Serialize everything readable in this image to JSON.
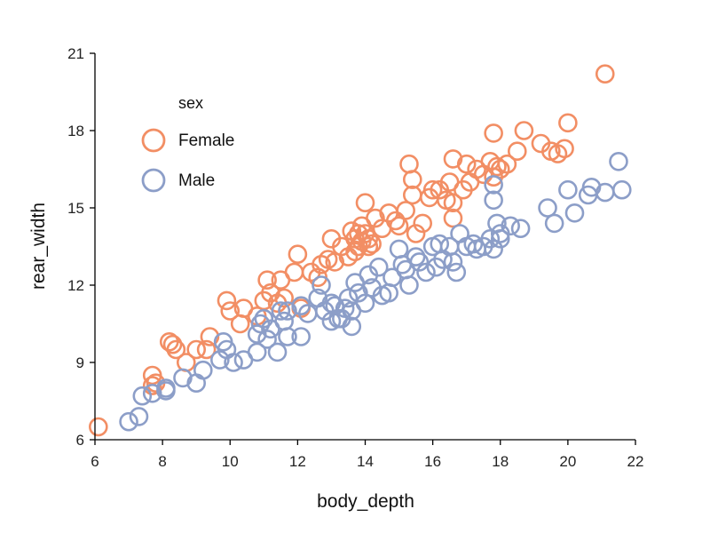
{
  "chart_data": {
    "type": "scatter",
    "title": "",
    "xlabel": "body_depth",
    "ylabel": "rear_width",
    "xlim": [
      6,
      22
    ],
    "ylim": [
      6,
      21
    ],
    "xticks": [
      6,
      8,
      10,
      12,
      14,
      16,
      18,
      20,
      22
    ],
    "yticks": [
      6,
      9,
      12,
      15,
      18,
      21
    ],
    "grid": false,
    "legend": {
      "title": "sex",
      "placement": "top-left"
    },
    "series": [
      {
        "name": "Female",
        "color": "#f28e64",
        "points": [
          [
            6.1,
            6.5
          ],
          [
            7.7,
            8.1
          ],
          [
            7.7,
            8.5
          ],
          [
            7.8,
            8.2
          ],
          [
            8.2,
            9.8
          ],
          [
            8.3,
            9.7
          ],
          [
            8.4,
            9.5
          ],
          [
            8.7,
            9.0
          ],
          [
            9.0,
            9.5
          ],
          [
            9.3,
            9.5
          ],
          [
            9.4,
            10.0
          ],
          [
            9.9,
            11.4
          ],
          [
            10.0,
            11.0
          ],
          [
            10.3,
            10.5
          ],
          [
            10.4,
            11.1
          ],
          [
            10.8,
            10.8
          ],
          [
            11.0,
            11.4
          ],
          [
            11.1,
            12.2
          ],
          [
            11.2,
            11.7
          ],
          [
            11.4,
            11.3
          ],
          [
            11.5,
            12.2
          ],
          [
            11.6,
            11.5
          ],
          [
            11.9,
            12.5
          ],
          [
            12.0,
            13.2
          ],
          [
            12.1,
            11.1
          ],
          [
            12.4,
            12.5
          ],
          [
            12.6,
            12.3
          ],
          [
            12.7,
            12.8
          ],
          [
            12.9,
            13.0
          ],
          [
            13.0,
            13.8
          ],
          [
            13.1,
            12.9
          ],
          [
            13.3,
            13.5
          ],
          [
            13.5,
            13.1
          ],
          [
            13.6,
            14.1
          ],
          [
            13.7,
            13.8
          ],
          [
            13.7,
            13.3
          ],
          [
            13.8,
            14.0
          ],
          [
            13.8,
            13.5
          ],
          [
            13.9,
            14.3
          ],
          [
            13.9,
            13.7
          ],
          [
            14.0,
            15.2
          ],
          [
            14.0,
            14.0
          ],
          [
            14.1,
            13.5
          ],
          [
            14.1,
            13.8
          ],
          [
            14.2,
            13.6
          ],
          [
            14.3,
            14.6
          ],
          [
            14.5,
            14.2
          ],
          [
            14.7,
            14.8
          ],
          [
            14.9,
            14.5
          ],
          [
            15.0,
            14.3
          ],
          [
            15.2,
            14.9
          ],
          [
            15.3,
            16.7
          ],
          [
            15.4,
            16.1
          ],
          [
            15.4,
            15.5
          ],
          [
            15.5,
            14.0
          ],
          [
            15.7,
            14.4
          ],
          [
            15.9,
            15.4
          ],
          [
            16.0,
            15.7
          ],
          [
            16.2,
            15.7
          ],
          [
            16.4,
            15.3
          ],
          [
            16.5,
            16.0
          ],
          [
            16.6,
            16.9
          ],
          [
            16.6,
            15.2
          ],
          [
            16.6,
            14.6
          ],
          [
            16.9,
            15.7
          ],
          [
            17.0,
            16.7
          ],
          [
            17.1,
            16.0
          ],
          [
            17.3,
            16.5
          ],
          [
            17.5,
            16.3
          ],
          [
            17.7,
            16.8
          ],
          [
            17.8,
            16.2
          ],
          [
            17.8,
            17.9
          ],
          [
            17.9,
            16.6
          ],
          [
            18.0,
            16.5
          ],
          [
            18.2,
            16.7
          ],
          [
            18.5,
            17.2
          ],
          [
            18.7,
            18.0
          ],
          [
            19.2,
            17.5
          ],
          [
            19.5,
            17.2
          ],
          [
            19.7,
            17.1
          ],
          [
            19.9,
            17.3
          ],
          [
            20.0,
            18.3
          ],
          [
            21.1,
            20.2
          ]
        ]
      },
      {
        "name": "Male",
        "color": "#8c9ec8",
        "points": [
          [
            7.0,
            6.7
          ],
          [
            7.3,
            6.9
          ],
          [
            7.4,
            7.7
          ],
          [
            7.7,
            7.8
          ],
          [
            8.1,
            7.9
          ],
          [
            8.1,
            8.0
          ],
          [
            8.6,
            8.4
          ],
          [
            9.0,
            8.2
          ],
          [
            9.2,
            8.7
          ],
          [
            9.7,
            9.1
          ],
          [
            9.8,
            9.8
          ],
          [
            9.9,
            9.5
          ],
          [
            10.1,
            9.0
          ],
          [
            10.4,
            9.1
          ],
          [
            10.8,
            9.4
          ],
          [
            10.8,
            10.1
          ],
          [
            10.9,
            10.5
          ],
          [
            11.0,
            10.7
          ],
          [
            11.1,
            9.9
          ],
          [
            11.2,
            10.3
          ],
          [
            11.4,
            9.4
          ],
          [
            11.5,
            11.0
          ],
          [
            11.6,
            10.6
          ],
          [
            11.7,
            11.0
          ],
          [
            11.7,
            10.0
          ],
          [
            12.1,
            10.0
          ],
          [
            12.1,
            11.2
          ],
          [
            12.3,
            10.9
          ],
          [
            12.6,
            11.5
          ],
          [
            12.7,
            12.0
          ],
          [
            12.8,
            11.0
          ],
          [
            13.0,
            11.3
          ],
          [
            13.0,
            10.6
          ],
          [
            13.1,
            11.2
          ],
          [
            13.2,
            10.7
          ],
          [
            13.3,
            10.7
          ],
          [
            13.4,
            11.1
          ],
          [
            13.5,
            11.5
          ],
          [
            13.6,
            10.4
          ],
          [
            13.6,
            11.0
          ],
          [
            13.7,
            12.1
          ],
          [
            13.8,
            11.7
          ],
          [
            14.0,
            11.3
          ],
          [
            14.1,
            12.4
          ],
          [
            14.2,
            11.9
          ],
          [
            14.4,
            12.7
          ],
          [
            14.5,
            11.6
          ],
          [
            14.7,
            11.7
          ],
          [
            14.8,
            12.3
          ],
          [
            15.0,
            13.4
          ],
          [
            15.1,
            12.8
          ],
          [
            15.2,
            12.6
          ],
          [
            15.3,
            12.0
          ],
          [
            15.5,
            13.1
          ],
          [
            15.6,
            12.9
          ],
          [
            15.8,
            12.5
          ],
          [
            16.0,
            13.5
          ],
          [
            16.1,
            12.7
          ],
          [
            16.2,
            13.6
          ],
          [
            16.3,
            13.0
          ],
          [
            16.5,
            13.5
          ],
          [
            16.6,
            12.9
          ],
          [
            16.7,
            12.5
          ],
          [
            16.8,
            14.0
          ],
          [
            17.0,
            13.5
          ],
          [
            17.2,
            13.6
          ],
          [
            17.3,
            13.4
          ],
          [
            17.5,
            13.5
          ],
          [
            17.7,
            13.8
          ],
          [
            17.8,
            13.4
          ],
          [
            17.8,
            15.3
          ],
          [
            17.8,
            15.9
          ],
          [
            17.9,
            14.4
          ],
          [
            18.0,
            13.8
          ],
          [
            18.0,
            14.0
          ],
          [
            18.3,
            14.3
          ],
          [
            18.6,
            14.2
          ],
          [
            19.4,
            15.0
          ],
          [
            19.6,
            14.4
          ],
          [
            20.0,
            15.7
          ],
          [
            20.2,
            14.8
          ],
          [
            20.6,
            15.5
          ],
          [
            20.7,
            15.8
          ],
          [
            21.1,
            15.6
          ],
          [
            21.5,
            16.8
          ],
          [
            21.6,
            15.7
          ]
        ]
      }
    ]
  }
}
